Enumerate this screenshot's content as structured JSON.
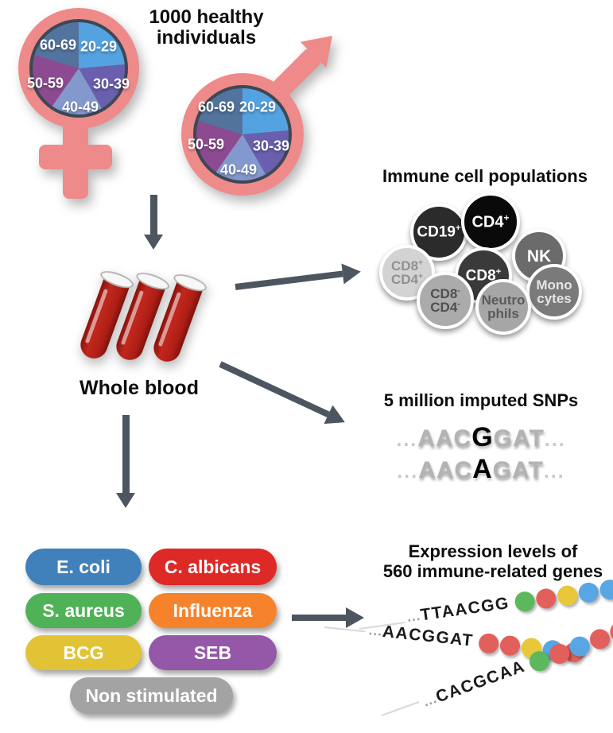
{
  "title": {
    "line1": "1000 healthy",
    "line2": "individuals"
  },
  "demographics": {
    "age_groups": [
      "20-29",
      "30-39",
      "40-49",
      "50-59",
      "60-69"
    ],
    "segment_colors": {
      "20-29": "#55a2e1",
      "30-39": "#6a5fae",
      "40-49": "#8398cd",
      "50-59": "#8c4b90",
      "60-69": "#53739f"
    },
    "symbol_color": "#ee8a8a"
  },
  "whole_blood": {
    "label": "Whole blood"
  },
  "immune": {
    "title": "Immune cell populations",
    "cells": [
      {
        "name": "nk",
        "lines": [
          {
            "text": "NK",
            "sup": ""
          }
        ],
        "bg": "#6b6b6b",
        "fg": "#ffffff"
      },
      {
        "name": "cd19-pos",
        "lines": [
          {
            "text": "CD19",
            "sup": "+"
          }
        ],
        "bg": "#2b2b2b",
        "fg": "#ffffff"
      },
      {
        "name": "cd4-pos",
        "lines": [
          {
            "text": "CD4",
            "sup": "+"
          }
        ],
        "bg": "#0a0a0a",
        "fg": "#ffffff"
      },
      {
        "name": "cd8-pos",
        "lines": [
          {
            "text": "CD8",
            "sup": "+"
          }
        ],
        "bg": "#3a3a3a",
        "fg": "#ffffff"
      },
      {
        "name": "cd8-pos-cd4-pos",
        "lines": [
          {
            "text": "CD8",
            "sup": "+"
          },
          {
            "text": "CD4",
            "sup": "+"
          }
        ],
        "bg": "#d3d3d3",
        "fg": "#909090"
      },
      {
        "name": "monocytes",
        "lines": [
          {
            "text": "Mono",
            "sup": ""
          },
          {
            "text": "cytes",
            "sup": ""
          }
        ],
        "bg": "#7a7a7a",
        "fg": "#e4e4e4"
      },
      {
        "name": "cd8-neg-cd4-neg",
        "lines": [
          {
            "text": "CD8",
            "sup": "-"
          },
          {
            "text": "CD4",
            "sup": "-"
          }
        ],
        "bg": "#ababab",
        "fg": "#4f4f4f"
      },
      {
        "name": "neutrophils",
        "lines": [
          {
            "text": "Neutro",
            "sup": ""
          },
          {
            "text": "phils",
            "sup": ""
          }
        ],
        "bg": "#a6a6a6",
        "fg": "#5a5a5a"
      }
    ]
  },
  "snps": {
    "title": "5 million imputed SNPs",
    "sequences": [
      {
        "parts": [
          {
            "t": "...",
            "k": "dim"
          },
          {
            "t": "AAC",
            "k": "gray"
          },
          {
            "t": "G",
            "k": "snp"
          },
          {
            "t": "GAT",
            "k": "gray"
          },
          {
            "t": "...",
            "k": "dim"
          }
        ]
      },
      {
        "parts": [
          {
            "t": "...",
            "k": "dim"
          },
          {
            "t": "AAC",
            "k": "gray"
          },
          {
            "t": "A",
            "k": "snp"
          },
          {
            "t": "GAT",
            "k": "gray"
          },
          {
            "t": "...",
            "k": "dim"
          }
        ]
      }
    ]
  },
  "stimuli": {
    "items": [
      {
        "label": "E. coli",
        "color": "#4181bb"
      },
      {
        "label": "C. albicans",
        "color": "#dd2a27"
      },
      {
        "label": "S. aureus",
        "color": "#50b257"
      },
      {
        "label": "Influenza",
        "color": "#f6832b"
      },
      {
        "label": "BCG",
        "color": "#e2c335"
      },
      {
        "label": "SEB",
        "color": "#9558a8"
      },
      {
        "label": "Non stimulated",
        "color": "#a3a3a3"
      }
    ]
  },
  "expression": {
    "title_line1": "Expression levels of",
    "title_line2": "560 immune-related genes",
    "dot_colors": {
      "green": "#5cb85c",
      "red": "#e2605c",
      "yellow": "#e9c73b",
      "blue": "#58a6e4"
    },
    "rows": [
      {
        "prefix": "...",
        "sequence": "TTAACGG",
        "dots": [
          "green",
          "red",
          "yellow",
          "blue",
          "blue"
        ]
      },
      {
        "prefix": "...",
        "sequence": "AACGGAT",
        "dots": [
          "red",
          "red",
          "yellow",
          "blue",
          "red"
        ]
      },
      {
        "prefix": "...",
        "sequence": "CACGCAA",
        "dots": [
          "green",
          "red",
          "blue",
          "red",
          "red"
        ]
      }
    ]
  },
  "arrow_color": "#4d5660"
}
